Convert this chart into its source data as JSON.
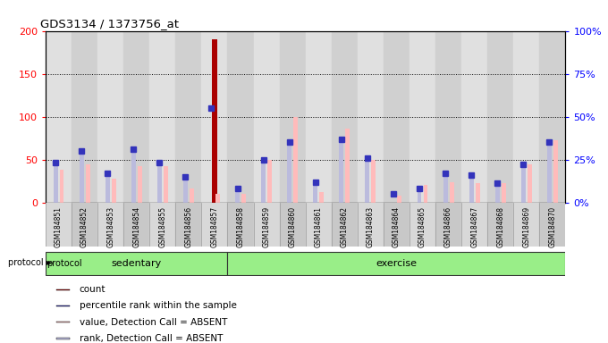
{
  "title": "GDS3134 / 1373756_at",
  "samples": [
    "GSM184851",
    "GSM184852",
    "GSM184853",
    "GSM184854",
    "GSM184855",
    "GSM184856",
    "GSM184857",
    "GSM184858",
    "GSM184859",
    "GSM184860",
    "GSM184861",
    "GSM184862",
    "GSM184863",
    "GSM184864",
    "GSM184865",
    "GSM184866",
    "GSM184867",
    "GSM184868",
    "GSM184869",
    "GSM184870"
  ],
  "count_values": [
    0,
    0,
    0,
    0,
    0,
    0,
    190,
    0,
    0,
    0,
    0,
    0,
    0,
    0,
    0,
    0,
    0,
    0,
    0,
    0
  ],
  "rank_pct": [
    23,
    30,
    17,
    31,
    23,
    15,
    55,
    8,
    25,
    35,
    12,
    37,
    26,
    5,
    8,
    17,
    16,
    11,
    22,
    35
  ],
  "absent_value_pct": [
    19,
    22,
    14,
    21,
    21,
    8,
    5,
    5,
    25,
    50,
    6,
    43,
    25,
    4,
    10,
    12,
    11,
    11,
    22,
    36
  ],
  "absent_rank_pct": [
    22,
    30,
    16,
    31,
    23,
    14,
    0,
    7,
    25,
    34,
    12,
    36,
    25,
    0,
    7,
    17,
    16,
    11,
    21,
    34
  ],
  "protocol_groups": [
    {
      "label": "sedentary",
      "start": 0,
      "end": 7
    },
    {
      "label": "exercise",
      "start": 7,
      "end": 20
    }
  ],
  "ylim_left": [
    0,
    200
  ],
  "ylim_right": [
    0,
    100
  ],
  "yticks_left": [
    0,
    50,
    100,
    150,
    200
  ],
  "yticks_right": [
    0,
    25,
    50,
    75,
    100
  ],
  "ytick_labels_left": [
    "0",
    "50",
    "100",
    "150",
    "200"
  ],
  "ytick_labels_right": [
    "0%",
    "25%",
    "50%",
    "75%",
    "100%"
  ],
  "plot_bg_color": "#f0f0f0",
  "col_color_even": "#e0e0e0",
  "col_color_odd": "#d0d0d0",
  "green_color_light": "#99ee88",
  "green_color_dark": "#44cc33",
  "count_color": "#aa0000",
  "rank_blue_color": "#3333bb",
  "absent_value_color": "#ffbbbb",
  "absent_rank_color": "#bbbbdd",
  "legend_items": [
    {
      "label": "count",
      "color": "#aa0000"
    },
    {
      "label": "percentile rank within the sample",
      "color": "#3333bb"
    },
    {
      "label": "value, Detection Call = ABSENT",
      "color": "#ffbbbb"
    },
    {
      "label": "rank, Detection Call = ABSENT",
      "color": "#bbbbdd"
    }
  ]
}
